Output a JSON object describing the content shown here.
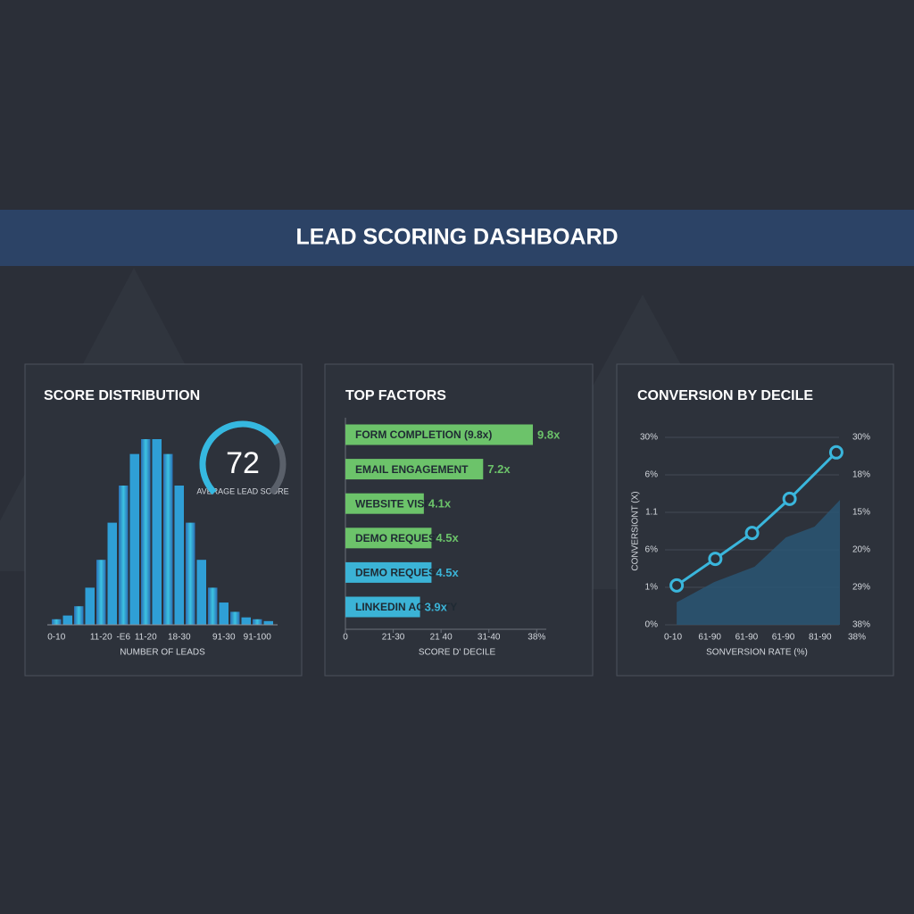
{
  "header": {
    "title": "LEAD SCORING DASHBOARD"
  },
  "chart_data": [
    {
      "type": "histogram",
      "title": "SCORE DISTRIBUTION",
      "xlabel": "NUMBER OF LEADS",
      "categories": [
        "0-10",
        null,
        null,
        null,
        "11-20",
        null,
        "-E6",
        null,
        "11-20",
        null,
        null,
        "18-30",
        null,
        null,
        null,
        "91-30",
        null,
        null,
        "91-100",
        null
      ],
      "values": [
        3,
        5,
        10,
        20,
        35,
        55,
        75,
        92,
        100,
        100,
        92,
        75,
        55,
        35,
        20,
        12,
        7,
        4,
        3,
        2
      ],
      "ylim": [
        0,
        100
      ],
      "color": "#2f9fd6",
      "gauge": {
        "value": 72,
        "label": "AVERAGE LEAD SCORE",
        "lim": [
          0,
          100
        ],
        "color": "#35b8e0"
      }
    },
    {
      "type": "hbar",
      "title": "TOP FACTORS",
      "xlabel": "SCORE D' DECILE",
      "categories": [
        "FORM COMPLETION (9.8x)",
        "EMAIL ENGAGEMENT",
        "WEBSITE VISITS",
        "DEMO REQUEST",
        "DEMO REQUEST",
        "LINKEDIN ACTIVITY"
      ],
      "values": [
        9.8,
        7.2,
        4.1,
        4.5,
        4.5,
        3.9
      ],
      "value_labels": [
        "9.8x",
        "7.2x",
        "4.1x",
        "4.5x",
        "4.5x",
        "3.9x"
      ],
      "colors": [
        "#6cc36a",
        "#6cc36a",
        "#6cc36a",
        "#6cc36a",
        "#3bb3d6",
        "#3bb3d6"
      ],
      "xlim": [
        0,
        10.5
      ],
      "xticks": [
        0,
        {
          "value": 2.5,
          "label": "21-30"
        },
        {
          "value": 5,
          "label": "21 40"
        },
        {
          "value": 7.5,
          "label": "31-40"
        },
        {
          "value": 10,
          "label": "38%"
        }
      ]
    },
    {
      "type": "line",
      "title": "CONVERSION BY DECILE",
      "xlabel": "SONVERSION RATE (%)",
      "ylabel": "CONVERSIONT (X)",
      "xlim": [
        -0.2,
        5
      ],
      "ylim": [
        0,
        5
      ],
      "y2lim": [
        0,
        5
      ],
      "xticks": [
        {
          "value": 0,
          "label": "0-10"
        },
        {
          "value": 1,
          "label": "61-90"
        },
        {
          "value": 2,
          "label": "61-90"
        },
        {
          "value": 3,
          "label": "61-90"
        },
        {
          "value": 4,
          "label": "81-90"
        },
        {
          "value": 5,
          "label": "38%"
        }
      ],
      "yticks": [
        {
          "value": 0,
          "label": "0%"
        },
        {
          "value": 1,
          "label": "1%"
        },
        {
          "value": 2,
          "label": "6%"
        },
        {
          "value": 3,
          "label": "1.1"
        },
        {
          "value": 4,
          "label": "6%"
        },
        {
          "value": 5,
          "label": "30%"
        }
      ],
      "y2ticks": [
        {
          "value": 0,
          "label": "38%"
        },
        {
          "value": 1,
          "label": "29%"
        },
        {
          "value": 2,
          "label": "20%"
        },
        {
          "value": 3,
          "label": "15%"
        },
        {
          "value": 4,
          "label": "18%"
        },
        {
          "value": 5,
          "label": "30%"
        }
      ],
      "grid": true,
      "series": [
        {
          "type": "area",
          "color": "#2a5674",
          "x": [
            0.1,
            1.12,
            2.22,
            3.07,
            3.85,
            4.54
          ],
          "values": [
            0.6,
            1.14,
            1.55,
            2.33,
            2.62,
            3.33
          ]
        },
        {
          "type": "line",
          "color": "#3ab6dc",
          "x": [
            0.1,
            1.15,
            2.15,
            3.17,
            4.44
          ],
          "values": [
            1.05,
            1.76,
            2.45,
            3.36,
            4.6
          ]
        }
      ]
    }
  ]
}
